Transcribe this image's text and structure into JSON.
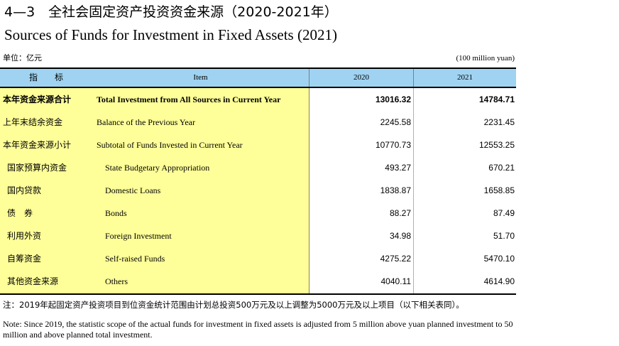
{
  "title_cn": "4—3　全社会固定资产投资资金来源（2020-2021年）",
  "title_en": "Sources of Funds for Investment in Fixed Assets (2021)",
  "unit_cn": "单位：亿元",
  "unit_en": "(100 million yuan)",
  "header": {
    "indicator_cn": "指　　标",
    "item_en": "Item",
    "col_2020": "2020",
    "col_2021": "2021"
  },
  "rows": [
    {
      "cn": "本年资金来源合计",
      "en": "Total Investment from All Sources in Current Year",
      "v2020": "13016.32",
      "v2021": "14784.71"
    },
    {
      "cn": "上年末结余资金",
      "en": "Balance of the Previous Year",
      "v2020": "2245.58",
      "v2021": "2231.45"
    },
    {
      "cn": "本年资金来源小计",
      "en": "Subtotal of Funds Invested in Current Year",
      "v2020": "10770.73",
      "v2021": "12553.25"
    },
    {
      "cn": "国家预算内资金",
      "en": "State Budgetary Appropriation",
      "v2020": "493.27",
      "v2021": "670.21"
    },
    {
      "cn": "国内贷款",
      "en": "Domestic Loans",
      "v2020": "1838.87",
      "v2021": "1658.85"
    },
    {
      "cn": "债　券",
      "en": "Bonds",
      "v2020": "88.27",
      "v2021": "87.49"
    },
    {
      "cn": "利用外资",
      "en": "Foreign Investment",
      "v2020": "34.98",
      "v2021": "51.70"
    },
    {
      "cn": "自筹资金",
      "en": "Self-raised Funds",
      "v2020": "4275.22",
      "v2021": "5470.10"
    },
    {
      "cn": "其他资金来源",
      "en": "Others",
      "v2020": "4040.11",
      "v2021": "4614.90"
    }
  ],
  "note_cn": "注：2019年起固定资产投资项目到位资金统计范围由计划总投资500万元及以上调整为5000万元及以上项目（以下相关表同）。",
  "note_en": "Note: Since 2019, the statistic scope of the actual funds for investment in fixed assets is adjusted from 5 million above yuan planned investment to 50 million and above planned total investment."
}
